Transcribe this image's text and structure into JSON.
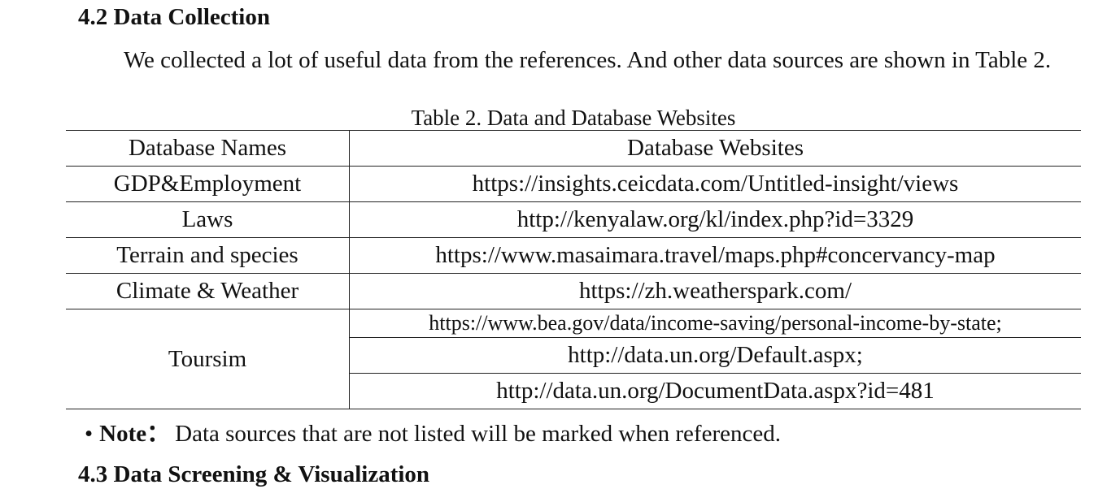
{
  "section": {
    "heading": "4.2 Data Collection",
    "paragraph": "We collected a lot of useful data from the references. And other data sources are shown in Table 2."
  },
  "table": {
    "caption": "Table 2. Data and Database Websites",
    "headers": [
      "Database Names",
      "Database Websites"
    ],
    "rows": [
      {
        "name": "GDP&Employment",
        "website": "https://insights.ceicdata.com/Untitled-insight/views"
      },
      {
        "name": "Laws",
        "website": "http://kenyalaw.org/kl/index.php?id=3329"
      },
      {
        "name": "Terrain and species",
        "website": "https://www.masaimara.travel/maps.php#concervancy-map"
      },
      {
        "name": "Climate & Weather",
        "website": "https://zh.weatherspark.com/"
      }
    ],
    "tourism": {
      "name": "Toursim",
      "websites": [
        "https://www.bea.gov/data/income-saving/personal-income-by-state;",
        "http://data.un.org/Default.aspx;",
        "http://data.un.org/DocumentData.aspx?id=481"
      ]
    }
  },
  "note": {
    "bullet": "•",
    "label": "Note：",
    "text": "Data sources that are not listed will be marked when referenced."
  },
  "next_section": {
    "heading": "4.3 Data Screening & Visualization"
  }
}
